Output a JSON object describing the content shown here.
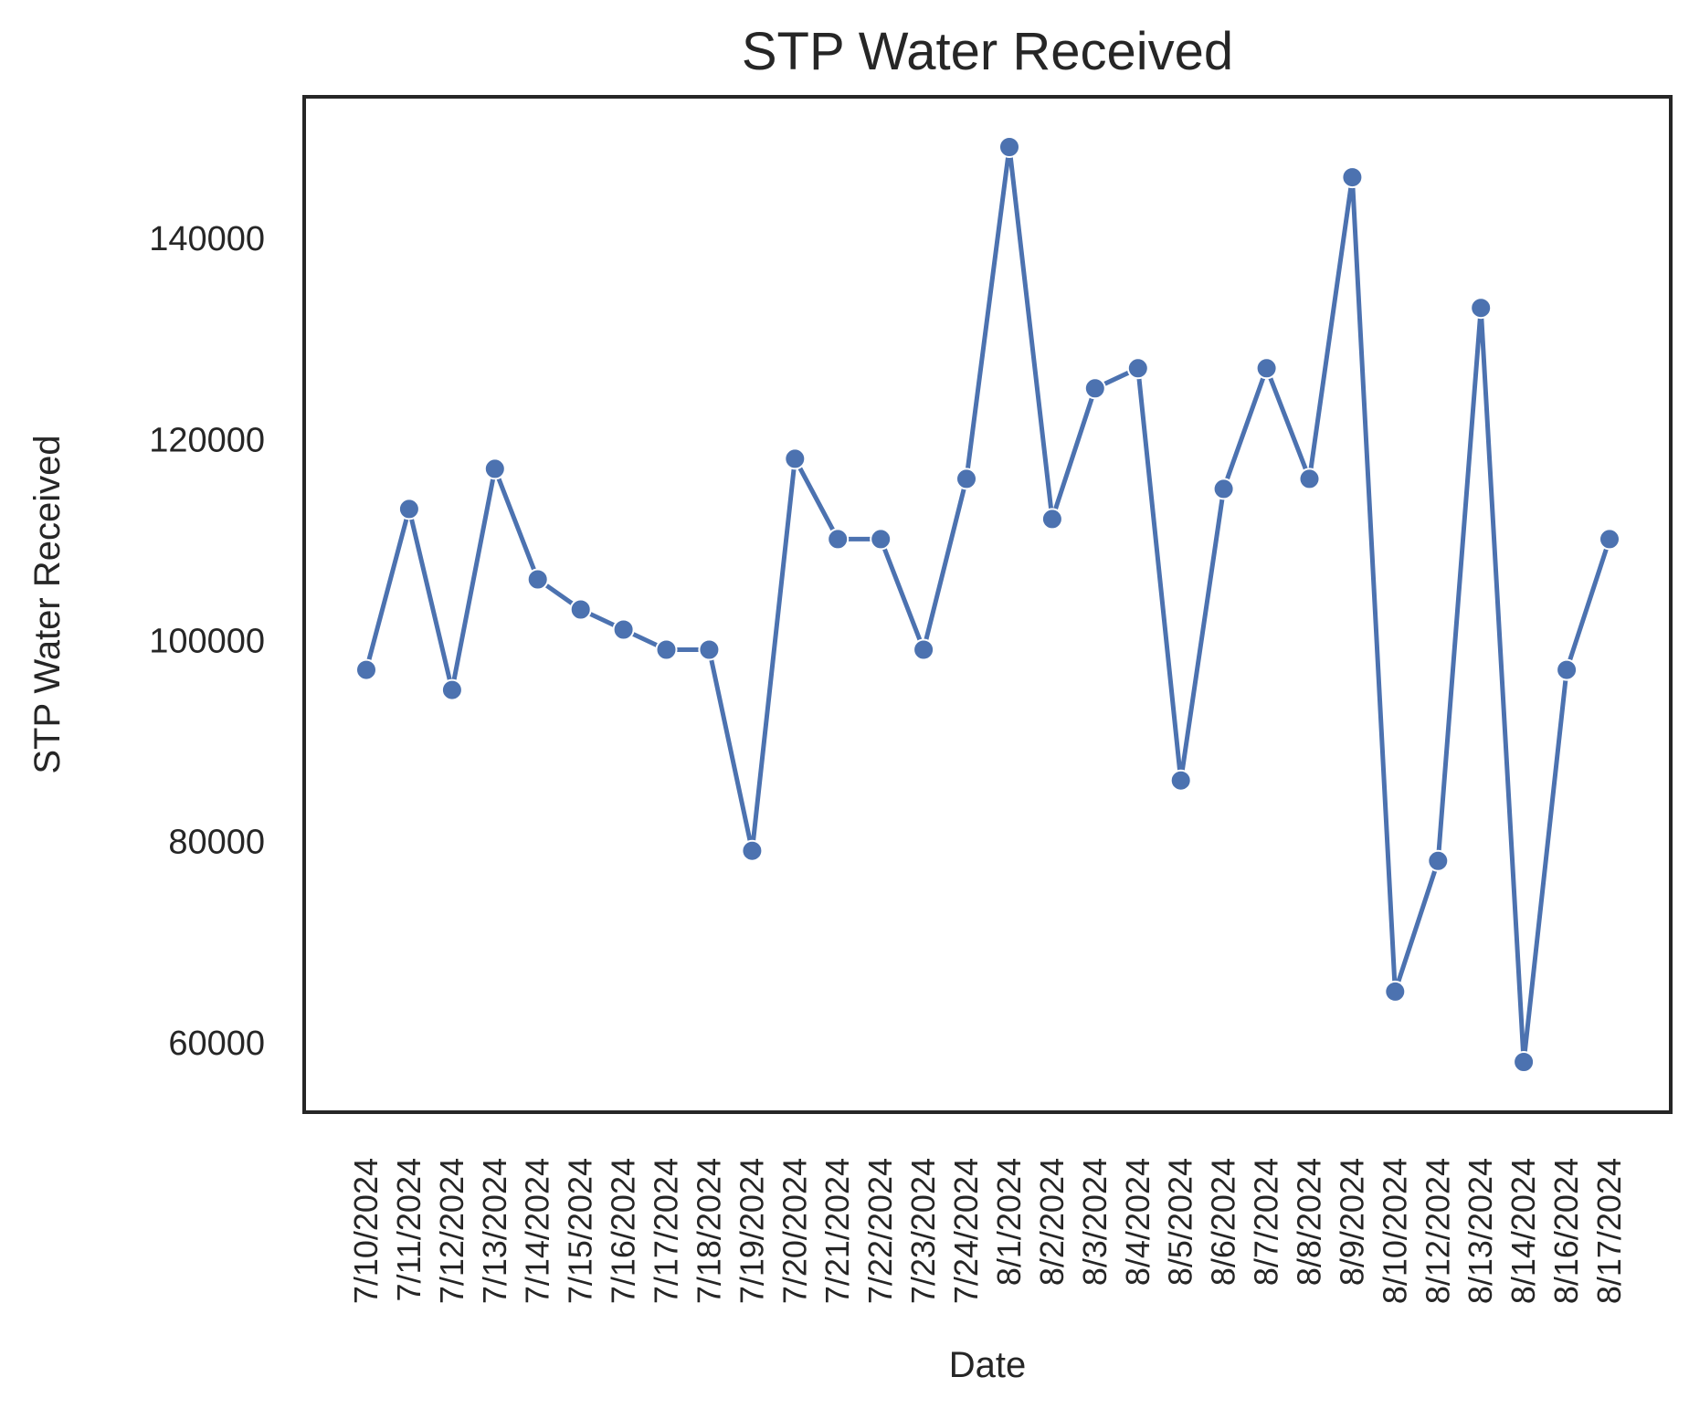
{
  "chart_data": {
    "type": "line",
    "title": "STP Water Received",
    "xlabel": "Date",
    "ylabel": "STP Water Received",
    "categories": [
      "7/10/2024",
      "7/11/2024",
      "7/12/2024",
      "7/13/2024",
      "7/14/2024",
      "7/15/2024",
      "7/16/2024",
      "7/17/2024",
      "7/18/2024",
      "7/19/2024",
      "7/20/2024",
      "7/21/2024",
      "7/22/2024",
      "7/23/2024",
      "7/24/2024",
      "8/1/2024",
      "8/2/2024",
      "8/3/2024",
      "8/4/2024",
      "8/5/2024",
      "8/6/2024",
      "8/7/2024",
      "8/8/2024",
      "8/9/2024",
      "8/10/2024",
      "8/12/2024",
      "8/13/2024",
      "8/14/2024",
      "8/16/2024",
      "8/17/2024"
    ],
    "series": [
      {
        "values": [
          97000,
          113000,
          95000,
          117000,
          106000,
          103000,
          101000,
          99000,
          99000,
          79000,
          118000,
          110000,
          110000,
          99000,
          116000,
          149000,
          112000,
          125000,
          127000,
          86000,
          115000,
          127000,
          116000,
          146000,
          65000,
          78000,
          133000,
          58000,
          97000,
          110000
        ]
      }
    ],
    "y_ticks": [
      60000,
      80000,
      100000,
      120000,
      140000
    ],
    "ylim": [
      53000,
      154000
    ],
    "grid": false,
    "colors": {
      "line": "#4c72b0",
      "marker": "#4c72b0",
      "marker_edge": "#ffffff",
      "frame": "#262626",
      "text": "#262626"
    }
  }
}
